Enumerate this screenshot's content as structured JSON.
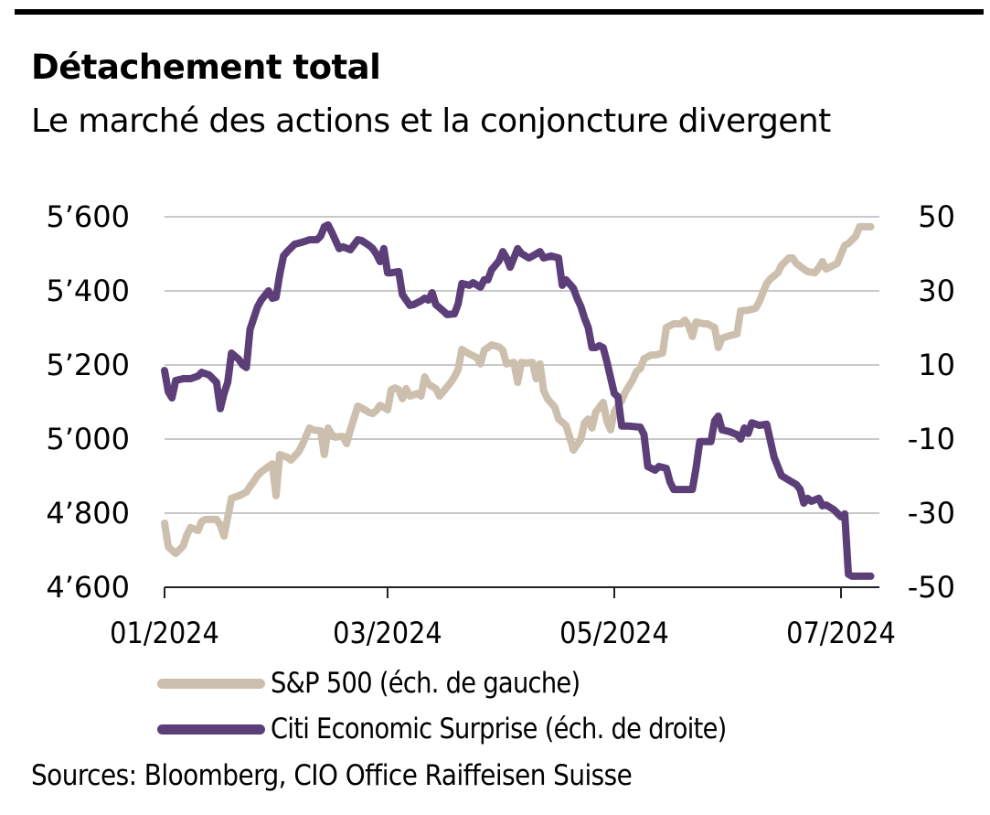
{
  "header": {
    "title": "Détachement total",
    "subtitle": "Le marché des actions et la conjoncture divergent"
  },
  "footer": {
    "source": "Sources: Bloomberg, CIO Office Raiffeisen Suisse"
  },
  "chart_data": {
    "type": "line",
    "title": "Détachement total",
    "subtitle": "Le marché des actions et la conjoncture divergent",
    "xlabel": "",
    "x_unit": "days since 01/01/2024",
    "xlim": [
      0,
      190
    ],
    "x_ticks": [
      {
        "label": "01/2024",
        "day": 0
      },
      {
        "label": "03/2024",
        "day": 60
      },
      {
        "label": "05/2024",
        "day": 121
      },
      {
        "label": "07/2024",
        "day": 182
      }
    ],
    "y_left": {
      "label": "",
      "lim": [
        4600,
        5600
      ],
      "ticks": [
        {
          "value": 5600,
          "label": "5’600"
        },
        {
          "value": 5400,
          "label": "5’400"
        },
        {
          "value": 5200,
          "label": "5’200"
        },
        {
          "value": 5000,
          "label": "5’000"
        },
        {
          "value": 4800,
          "label": "4’800"
        },
        {
          "value": 4600,
          "label": "4’600"
        }
      ]
    },
    "y_right": {
      "label": "",
      "lim": [
        -50,
        50
      ],
      "ticks": [
        {
          "value": 50,
          "label": "50"
        },
        {
          "value": 30,
          "label": "30"
        },
        {
          "value": 10,
          "label": "10"
        },
        {
          "value": -10,
          "label": "-10"
        },
        {
          "value": -30,
          "label": "-30"
        },
        {
          "value": -50,
          "label": "-50"
        }
      ]
    },
    "grid": true,
    "legend_position": "bottom-center",
    "series": [
      {
        "name": "S&P 500 (éch. de gauche)",
        "axis": "left",
        "color": "#cdbfae",
        "points": [
          [
            0,
            4773
          ],
          [
            1,
            4709
          ],
          [
            3,
            4691
          ],
          [
            5,
            4711
          ],
          [
            6,
            4741
          ],
          [
            7,
            4761
          ],
          [
            9,
            4753
          ],
          [
            10,
            4778
          ],
          [
            11,
            4783
          ],
          [
            14,
            4783
          ],
          [
            15,
            4768
          ],
          [
            16,
            4738
          ],
          [
            18,
            4840
          ],
          [
            20,
            4847
          ],
          [
            22,
            4857
          ],
          [
            23,
            4872
          ],
          [
            24,
            4886
          ],
          [
            25,
            4901
          ],
          [
            26,
            4911
          ],
          [
            28,
            4926
          ],
          [
            29,
            4933
          ],
          [
            30,
            4847
          ],
          [
            31,
            4958
          ],
          [
            33,
            4951
          ],
          [
            34,
            4943
          ],
          [
            36,
            4965
          ],
          [
            37,
            4983
          ],
          [
            39,
            5030
          ],
          [
            40,
            5025
          ],
          [
            42,
            5022
          ],
          [
            43,
            4958
          ],
          [
            44,
            5030
          ],
          [
            45,
            5012
          ],
          [
            46,
            5005
          ],
          [
            47,
            5007
          ],
          [
            48,
            5007
          ],
          [
            49,
            4988
          ],
          [
            50,
            5025
          ],
          [
            52,
            5089
          ],
          [
            53,
            5084
          ],
          [
            55,
            5072
          ],
          [
            56,
            5069
          ],
          [
            57,
            5077
          ],
          [
            58,
            5091
          ],
          [
            60,
            5079
          ],
          [
            61,
            5133
          ],
          [
            62,
            5138
          ],
          [
            63,
            5133
          ],
          [
            64,
            5109
          ],
          [
            65,
            5136
          ],
          [
            66,
            5116
          ],
          [
            68,
            5123
          ],
          [
            69,
            5116
          ],
          [
            70,
            5168
          ],
          [
            71,
            5148
          ],
          [
            73,
            5136
          ],
          [
            74,
            5116
          ],
          [
            75,
            5128
          ],
          [
            77,
            5153
          ],
          [
            78,
            5168
          ],
          [
            79,
            5188
          ],
          [
            80,
            5242
          ],
          [
            82,
            5230
          ],
          [
            84,
            5220
          ],
          [
            85,
            5203
          ],
          [
            86,
            5240
          ],
          [
            88,
            5254
          ],
          [
            90,
            5249
          ],
          [
            91,
            5240
          ],
          [
            92,
            5203
          ],
          [
            94,
            5207
          ],
          [
            95,
            5153
          ],
          [
            96,
            5207
          ],
          [
            97,
            5205
          ],
          [
            99,
            5207
          ],
          [
            100,
            5163
          ],
          [
            101,
            5203
          ],
          [
            102,
            5131
          ],
          [
            103,
            5109
          ],
          [
            105,
            5086
          ],
          [
            106,
            5054
          ],
          [
            108,
            5037
          ],
          [
            109,
            5005
          ],
          [
            110,
            4970
          ],
          [
            111,
            4985
          ],
          [
            112,
            5000
          ],
          [
            113,
            5044
          ],
          [
            114,
            5054
          ],
          [
            115,
            5030
          ],
          [
            116,
            5072
          ],
          [
            117,
            5086
          ],
          [
            118,
            5099
          ],
          [
            119,
            5049
          ],
          [
            120,
            5025
          ],
          [
            121,
            5074
          ],
          [
            123,
            5104
          ],
          [
            124,
            5128
          ],
          [
            126,
            5160
          ],
          [
            127,
            5183
          ],
          [
            128,
            5190
          ],
          [
            129,
            5217
          ],
          [
            131,
            5227
          ],
          [
            132,
            5227
          ],
          [
            134,
            5232
          ],
          [
            135,
            5301
          ],
          [
            137,
            5311
          ],
          [
            139,
            5311
          ],
          [
            140,
            5321
          ],
          [
            141,
            5306
          ],
          [
            142,
            5277
          ],
          [
            143,
            5316
          ],
          [
            145,
            5311
          ],
          [
            146,
            5311
          ],
          [
            148,
            5301
          ],
          [
            149,
            5247
          ],
          [
            150,
            5272
          ],
          [
            152,
            5279
          ],
          [
            154,
            5284
          ],
          [
            155,
            5346
          ],
          [
            157,
            5348
          ],
          [
            159,
            5353
          ],
          [
            160,
            5370
          ],
          [
            162,
            5420
          ],
          [
            163,
            5432
          ],
          [
            165,
            5449
          ],
          [
            166,
            5469
          ],
          [
            168,
            5489
          ],
          [
            169,
            5489
          ],
          [
            170,
            5474
          ],
          [
            172,
            5459
          ],
          [
            173,
            5452
          ],
          [
            175,
            5449
          ],
          [
            176,
            5462
          ],
          [
            177,
            5479
          ],
          [
            178,
            5459
          ],
          [
            179,
            5464
          ],
          [
            181,
            5474
          ],
          [
            182,
            5499
          ],
          [
            183,
            5523
          ],
          [
            184,
            5528
          ],
          [
            186,
            5548
          ],
          [
            187,
            5573
          ],
          [
            188,
            5573
          ],
          [
            190,
            5573
          ]
        ]
      },
      {
        "name": "Citi Economic Surprise (éch. de droite)",
        "axis": "right",
        "color": "#5c3f78",
        "points": [
          [
            0,
            8.5
          ],
          [
            1,
            2.8
          ],
          [
            2,
            1.1
          ],
          [
            3,
            5.8
          ],
          [
            5,
            6.3
          ],
          [
            7,
            6.3
          ],
          [
            9,
            7.0
          ],
          [
            10,
            8.0
          ],
          [
            12,
            7.3
          ],
          [
            14,
            5.3
          ],
          [
            15,
            -1.8
          ],
          [
            16,
            2.3
          ],
          [
            17,
            5.3
          ],
          [
            18,
            13.2
          ],
          [
            20,
            11.5
          ],
          [
            21,
            10.0
          ],
          [
            22,
            9.3
          ],
          [
            23,
            19.6
          ],
          [
            25,
            25.6
          ],
          [
            26,
            27.5
          ],
          [
            28,
            30.0
          ],
          [
            29,
            28.0
          ],
          [
            30,
            28.3
          ],
          [
            31,
            34.4
          ],
          [
            32,
            39.4
          ],
          [
            33,
            40.6
          ],
          [
            35,
            42.6
          ],
          [
            37,
            43.1
          ],
          [
            39,
            43.8
          ],
          [
            41,
            43.8
          ],
          [
            42,
            44.8
          ],
          [
            43,
            47.3
          ],
          [
            44,
            47.8
          ],
          [
            45,
            45.8
          ],
          [
            47,
            41.4
          ],
          [
            48,
            41.9
          ],
          [
            50,
            41.1
          ],
          [
            52,
            43.8
          ],
          [
            53,
            43.6
          ],
          [
            55,
            42.3
          ],
          [
            56,
            41.4
          ],
          [
            57,
            39.9
          ],
          [
            58,
            37.9
          ],
          [
            59,
            41.4
          ],
          [
            60,
            34.9
          ],
          [
            61,
            34.9
          ],
          [
            63,
            35.2
          ],
          [
            64,
            29.0
          ],
          [
            66,
            26.1
          ],
          [
            67,
            26.3
          ],
          [
            69,
            27.3
          ],
          [
            70,
            28.0
          ],
          [
            71,
            27.5
          ],
          [
            72,
            29.5
          ],
          [
            73,
            26.3
          ],
          [
            75,
            24.6
          ],
          [
            76,
            23.6
          ],
          [
            78,
            23.8
          ],
          [
            79,
            26.5
          ],
          [
            80,
            32.0
          ],
          [
            82,
            31.5
          ],
          [
            83,
            32.2
          ],
          [
            85,
            31.0
          ],
          [
            86,
            33.0
          ],
          [
            87,
            33.0
          ],
          [
            88,
            35.7
          ],
          [
            90,
            38.1
          ],
          [
            91,
            40.6
          ],
          [
            92,
            38.9
          ],
          [
            93,
            36.4
          ],
          [
            95,
            41.4
          ],
          [
            96,
            40.1
          ],
          [
            98,
            38.9
          ],
          [
            99,
            39.4
          ],
          [
            101,
            40.6
          ],
          [
            102,
            38.9
          ],
          [
            104,
            39.4
          ],
          [
            106,
            38.9
          ],
          [
            107,
            31.5
          ],
          [
            108,
            33.0
          ],
          [
            110,
            30.7
          ],
          [
            111,
            28.0
          ],
          [
            112,
            25.8
          ],
          [
            113,
            22.6
          ],
          [
            114,
            20.1
          ],
          [
            115,
            14.7
          ],
          [
            116,
            14.7
          ],
          [
            117,
            15.2
          ],
          [
            118,
            14.7
          ],
          [
            119,
            11.0
          ],
          [
            121,
            2.3
          ],
          [
            122,
            1.4
          ],
          [
            123,
            -6.5
          ],
          [
            125,
            -6.5
          ],
          [
            128,
            -6.8
          ],
          [
            129,
            -8.8
          ],
          [
            130,
            -17.4
          ],
          [
            132,
            -18.4
          ],
          [
            133,
            -17.4
          ],
          [
            135,
            -17.9
          ],
          [
            136,
            -21.6
          ],
          [
            137,
            -23.6
          ],
          [
            140,
            -23.6
          ],
          [
            142,
            -23.6
          ],
          [
            143,
            -17.9
          ],
          [
            144,
            -10.7
          ],
          [
            146,
            -10.7
          ],
          [
            147,
            -10.7
          ],
          [
            148,
            -5.1
          ],
          [
            149,
            -3.8
          ],
          [
            150,
            -7.5
          ],
          [
            152,
            -8.0
          ],
          [
            154,
            -8.8
          ],
          [
            155,
            -10.0
          ],
          [
            156,
            -7.0
          ],
          [
            157,
            -8.5
          ],
          [
            158,
            -5.6
          ],
          [
            160,
            -6.3
          ],
          [
            162,
            -6.0
          ],
          [
            164,
            -14.9
          ],
          [
            166,
            -19.9
          ],
          [
            168,
            -21.1
          ],
          [
            170,
            -22.3
          ],
          [
            171,
            -23.6
          ],
          [
            172,
            -27.3
          ],
          [
            173,
            -26.0
          ],
          [
            174,
            -26.8
          ],
          [
            176,
            -26.0
          ],
          [
            177,
            -28.0
          ],
          [
            178,
            -27.8
          ],
          [
            180,
            -29.0
          ],
          [
            182,
            -31.0
          ],
          [
            183,
            -30.2
          ],
          [
            184,
            -46.5
          ],
          [
            185,
            -47.0
          ],
          [
            187,
            -47.0
          ],
          [
            190,
            -47.0
          ]
        ]
      }
    ]
  }
}
